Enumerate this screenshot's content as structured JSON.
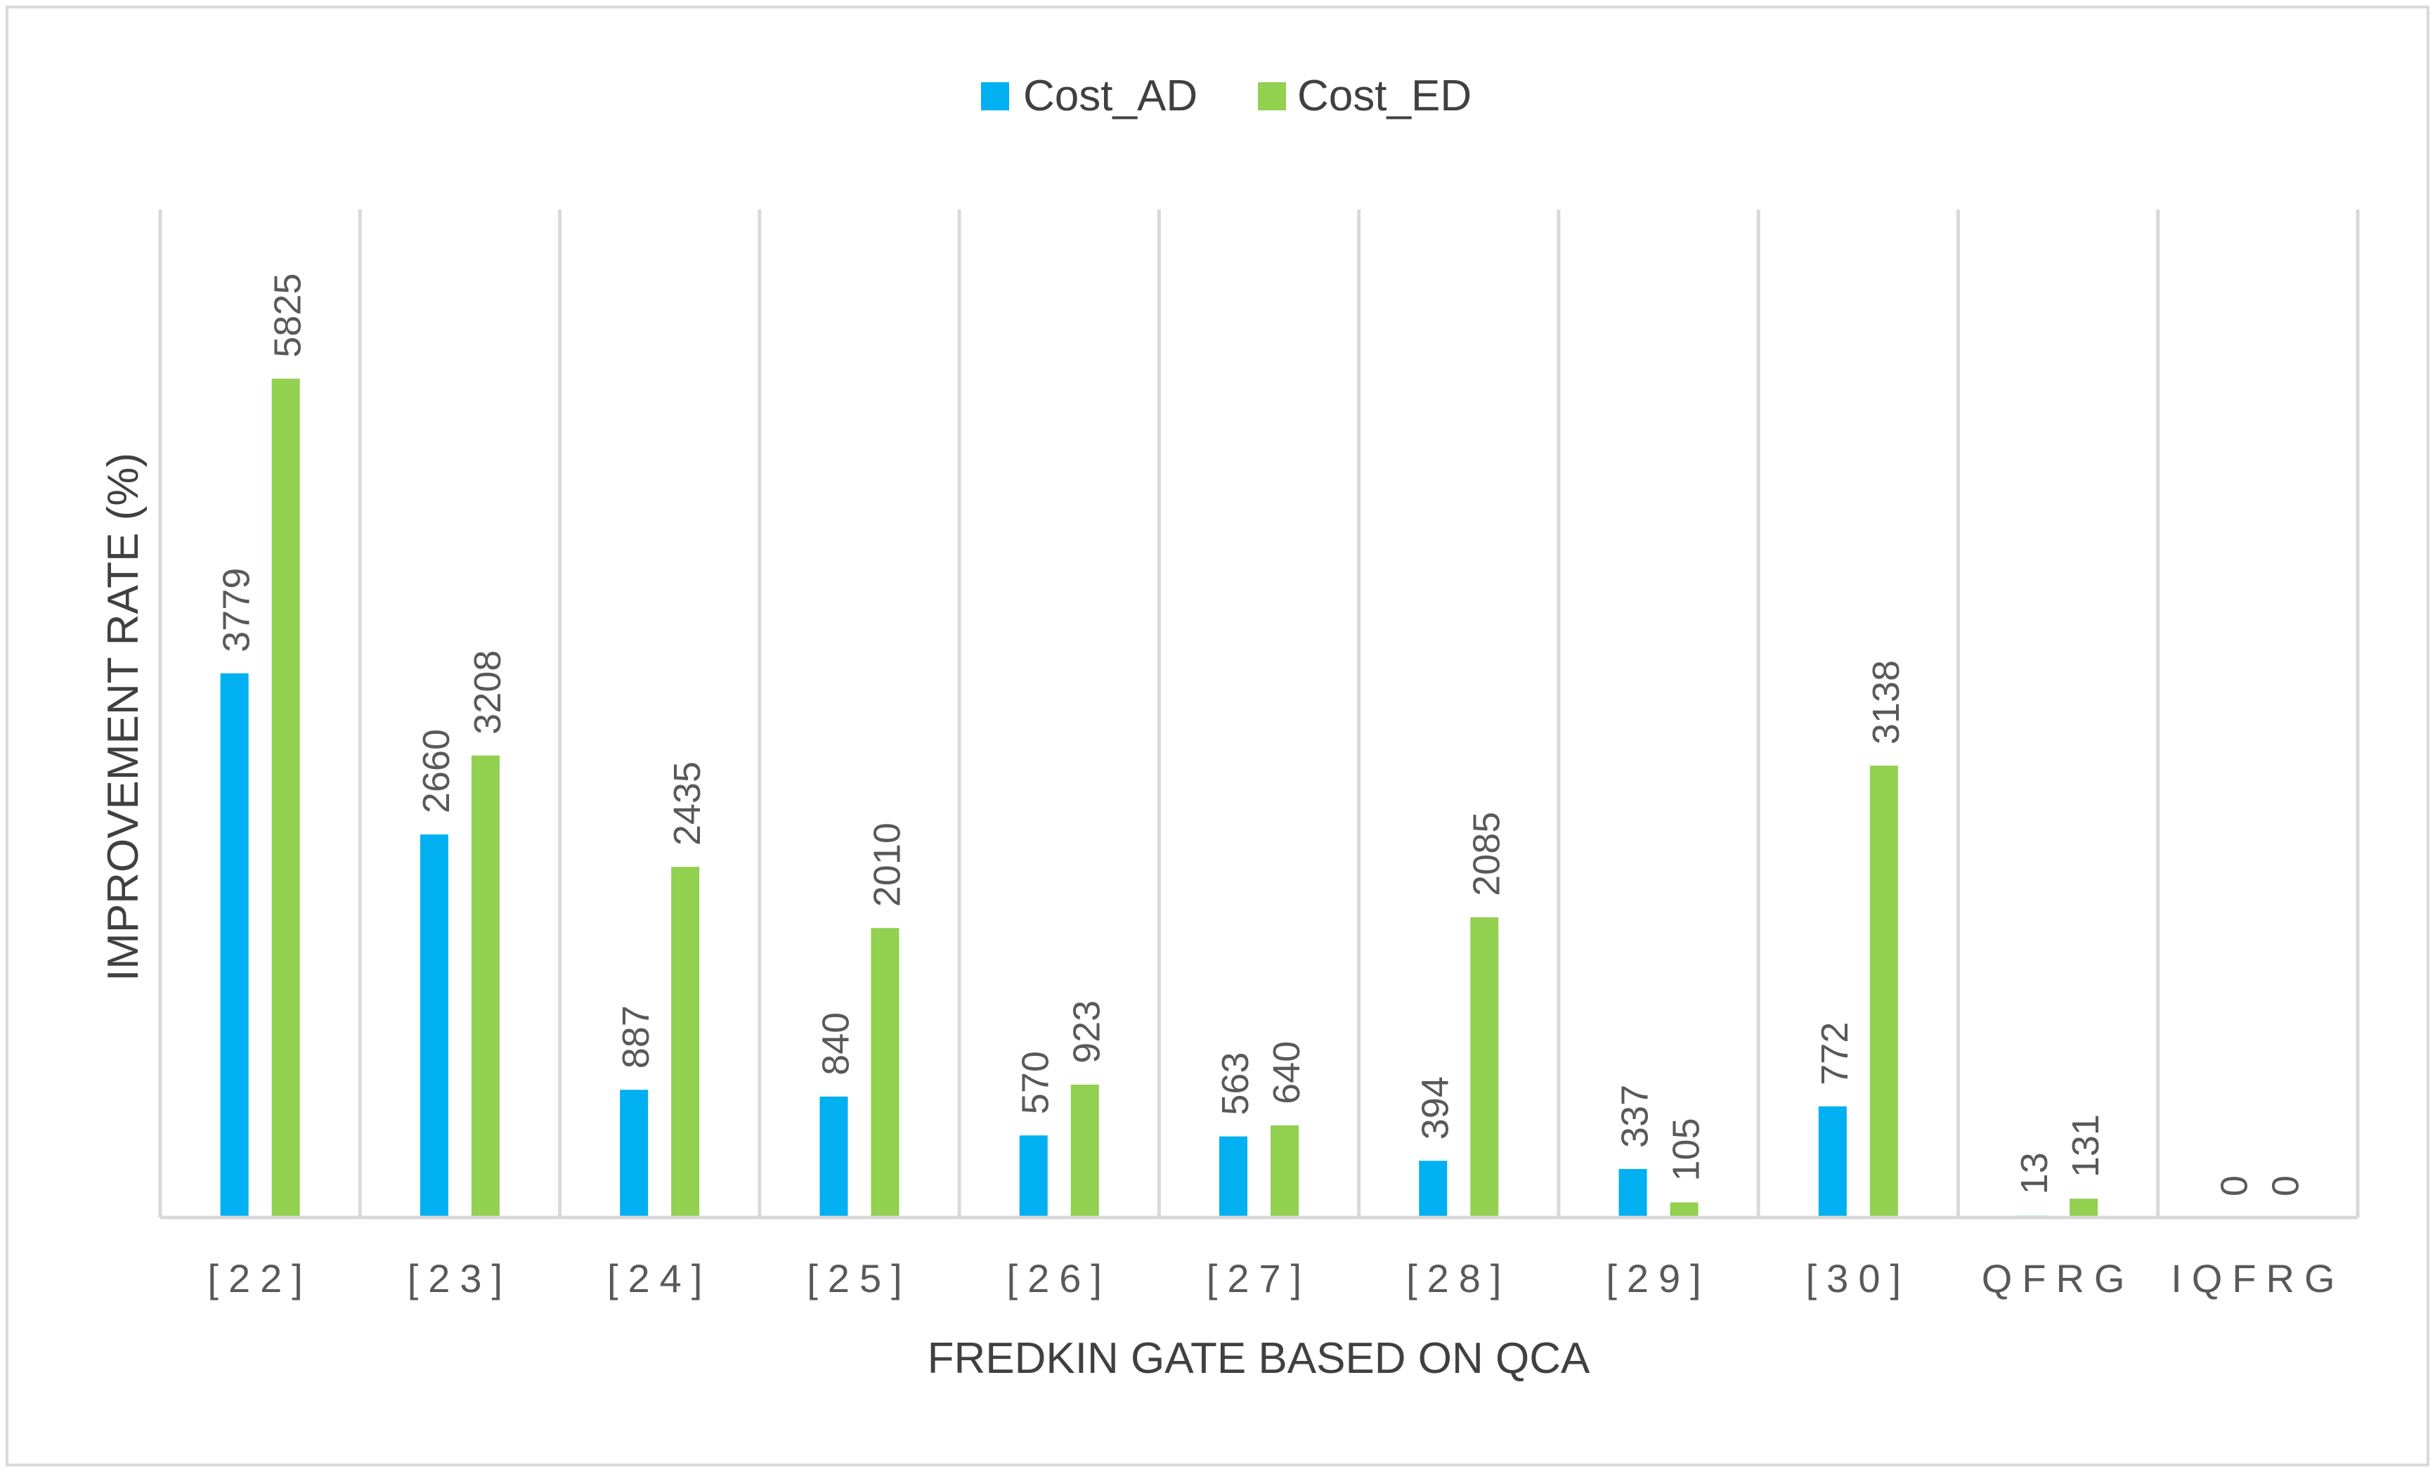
{
  "chart_data": {
    "type": "bar",
    "title": "",
    "xlabel": "FREDKIN GATE BASED ON QCA",
    "ylabel": "IMPROVEMENT RATE (%)",
    "categories": [
      "[22]",
      "[23]",
      "[24]",
      "[25]",
      "[26]",
      "[27]",
      "[28]",
      "[29]",
      "[30]",
      "QFRG",
      "IQFRG"
    ],
    "series": [
      {
        "name": "Cost_AD",
        "color": "#00B0F0",
        "values": [
          3779,
          2660,
          887,
          840,
          570,
          563,
          394,
          337,
          772,
          13,
          0
        ]
      },
      {
        "name": "Cost_ED",
        "color": "#92D050",
        "values": [
          5825,
          3208,
          2435,
          2010,
          923,
          640,
          2085,
          105,
          3138,
          131,
          0
        ]
      }
    ],
    "ylim": [
      0,
      7000
    ],
    "grid": "vertical",
    "legend_position": "top-center",
    "data_labels": true
  }
}
